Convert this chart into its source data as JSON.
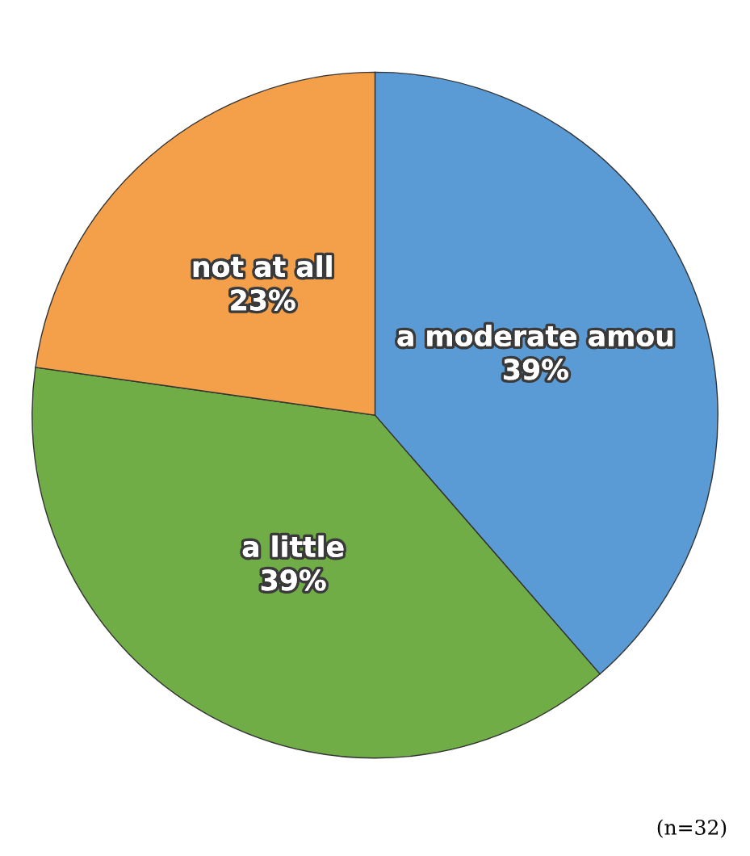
{
  "chart_data": {
    "type": "pie",
    "categories": [
      "a moderate amou",
      "a little",
      "not at all"
    ],
    "values": [
      39,
      39,
      23
    ],
    "value_labels": [
      "39%",
      "39%",
      "23%"
    ],
    "colors": [
      "#5b9bd5",
      "#70ad47",
      "#f4a04a"
    ],
    "annotations": [
      "(n=32)"
    ]
  }
}
